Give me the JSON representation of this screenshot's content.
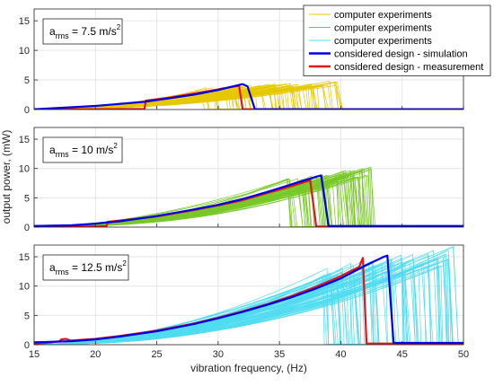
{
  "chart_data": {
    "type": "line",
    "xlabel": "vibration frequency, (Hz)",
    "ylabel": "output power, (mW)",
    "xlim": [
      15,
      50
    ],
    "x_ticks": [
      15,
      20,
      25,
      30,
      35,
      40,
      45,
      50
    ],
    "ylim": [
      0,
      17
    ],
    "y_ticks": [
      0,
      5,
      10,
      15
    ],
    "grid": true,
    "legend": {
      "placement": "top-right",
      "entries": [
        {
          "label": "computer experiments",
          "color": "#e6c800",
          "width": 1
        },
        {
          "label": "computer experiments",
          "color": "#78c828",
          "width": 1
        },
        {
          "label": "computer experiments",
          "color": "#50dcf0",
          "width": 1
        },
        {
          "label": "considered design - simulation",
          "color": "#0000e6",
          "width": 2.5
        },
        {
          "label": "considered design - measurement",
          "color": "#e61414",
          "width": 2.5
        }
      ]
    },
    "panels": [
      {
        "annotation": {
          "main": "a",
          "sub": "rms",
          "rest": " = 7.5 m/s",
          "sup": "2"
        },
        "experiments": {
          "color": "#e6c800",
          "count": 70,
          "peak_freq_range": [
            28.5,
            39.8
          ],
          "peak_power_range": [
            2.6,
            4.9
          ],
          "start_freq": 15.3
        },
        "simulation": {
          "x": [
            15,
            20,
            24,
            26,
            28,
            30,
            31,
            32,
            32.4,
            33,
            50
          ],
          "y": [
            0.05,
            0.6,
            1.3,
            1.9,
            2.5,
            3.3,
            3.8,
            4.3,
            3.9,
            0.05,
            0.05
          ]
        },
        "measurement": {
          "x": [
            15,
            20,
            24,
            24.1,
            26,
            28,
            30,
            31,
            31.7,
            32,
            50
          ],
          "y": [
            0.05,
            0.05,
            0.1,
            1.5,
            2.0,
            2.7,
            3.4,
            3.8,
            4.0,
            0.05,
            0.05
          ]
        }
      },
      {
        "annotation": {
          "main": "a",
          "sub": "rms",
          "rest": " = 10 m/s",
          "sup": "2"
        },
        "experiments": {
          "color": "#78c828",
          "count": 70,
          "peak_freq_range": [
            35.5,
            42.5
          ],
          "peak_power_range": [
            6.5,
            10.4
          ],
          "start_freq": 15.3
        },
        "simulation": {
          "x": [
            15,
            18,
            20,
            22,
            25,
            28,
            30,
            32,
            34,
            36,
            38,
            38.4,
            39,
            50
          ],
          "y": [
            0.2,
            0.3,
            0.6,
            1.0,
            1.9,
            3.0,
            3.8,
            4.8,
            6.0,
            7.3,
            8.6,
            8.8,
            0.2,
            0.2
          ]
        },
        "measurement": {
          "x": [
            15,
            20,
            20.9,
            21,
            25,
            28,
            30,
            32,
            34,
            36,
            37.5,
            38,
            50
          ],
          "y": [
            0.1,
            0.1,
            0.15,
            0.9,
            1.8,
            2.9,
            3.7,
            4.6,
            5.8,
            7.0,
            8.0,
            0.1,
            0.1
          ]
        }
      },
      {
        "annotation": {
          "main": "a",
          "sub": "rms",
          "rest": " = 12.5 m/s",
          "sup": "2"
        },
        "experiments": {
          "color": "#50dcf0",
          "count": 80,
          "peak_freq_range": [
            38.5,
            49.5
          ],
          "peak_power_range": [
            10.0,
            17.0
          ],
          "start_freq": 15.2
        },
        "simulation": {
          "x": [
            15,
            18,
            20,
            22,
            25,
            28,
            30,
            32,
            34,
            36,
            38,
            40,
            42,
            43.5,
            43.8,
            44.3,
            50
          ],
          "y": [
            0.4,
            0.6,
            0.9,
            1.4,
            2.3,
            3.5,
            4.5,
            5.6,
            6.8,
            8.1,
            9.6,
            11.3,
            13.5,
            15.0,
            15.2,
            0.3,
            0.3
          ]
        },
        "measurement": {
          "x": [
            15,
            16,
            17.1,
            17.2,
            17.6,
            18,
            20,
            22,
            25,
            28,
            30,
            32,
            34,
            36,
            38,
            40,
            41.5,
            41.8,
            42.1,
            50
          ],
          "y": [
            0.2,
            0.3,
            0.6,
            0.9,
            1.0,
            0.7,
            1.0,
            1.5,
            2.4,
            3.6,
            4.6,
            5.7,
            6.9,
            8.3,
            9.9,
            11.7,
            13.3,
            14.8,
            0.2,
            0.2
          ]
        }
      }
    ]
  }
}
